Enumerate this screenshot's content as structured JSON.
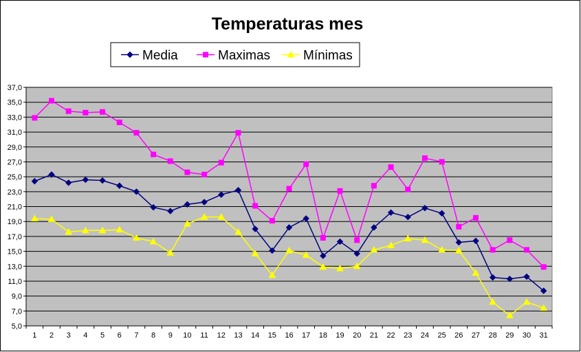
{
  "chart_data": {
    "type": "line",
    "title": "Temperaturas mes",
    "xlabel": "",
    "ylabel": "",
    "ylim": [
      5.0,
      37.0
    ],
    "y_ticks": [
      "5,0",
      "7,0",
      "9,0",
      "11,0",
      "13,0",
      "15,0",
      "17,0",
      "19,0",
      "21,0",
      "23,0",
      "25,0",
      "27,0",
      "29,0",
      "31,0",
      "33,0",
      "35,0",
      "37,0"
    ],
    "categories": [
      "1",
      "2",
      "3",
      "4",
      "5",
      "6",
      "7",
      "8",
      "9",
      "10",
      "11",
      "12",
      "13",
      "14",
      "15",
      "16",
      "17",
      "18",
      "19",
      "20",
      "21",
      "22",
      "23",
      "24",
      "25",
      "26",
      "27",
      "28",
      "29",
      "30",
      "31"
    ],
    "grid": true,
    "legend_position": "top",
    "plot_background": "#c0c0c0",
    "series": [
      {
        "name": "Media",
        "color": "#000080",
        "marker": "diamond",
        "values": [
          24.4,
          25.3,
          24.2,
          24.6,
          24.5,
          23.8,
          23.0,
          20.9,
          20.4,
          21.3,
          21.6,
          22.6,
          23.2,
          18.0,
          15.1,
          18.2,
          19.4,
          14.4,
          16.3,
          14.7,
          18.2,
          20.2,
          19.6,
          20.8,
          20.1,
          16.2,
          16.4,
          11.5,
          11.3,
          11.6,
          9.7
        ]
      },
      {
        "name": "Maximas",
        "color": "#ff00ff",
        "marker": "square",
        "values": [
          32.9,
          35.2,
          33.8,
          33.6,
          33.7,
          32.3,
          30.9,
          28.0,
          27.1,
          25.6,
          25.3,
          26.9,
          30.9,
          21.1,
          19.1,
          23.4,
          26.7,
          16.8,
          23.1,
          16.5,
          23.8,
          26.3,
          23.3,
          27.5,
          27.0,
          18.3,
          19.5,
          15.2,
          16.5,
          15.2,
          12.9
        ]
      },
      {
        "name": "Mínimas",
        "color": "#ffff00",
        "marker": "triangle",
        "values": [
          19.4,
          19.3,
          17.6,
          17.8,
          17.8,
          17.9,
          16.8,
          16.3,
          14.8,
          18.7,
          19.6,
          19.6,
          17.6,
          14.7,
          11.8,
          15.1,
          14.5,
          12.9,
          12.7,
          13.0,
          15.2,
          15.8,
          16.7,
          16.5,
          15.2,
          15.1,
          12.1,
          8.2,
          6.4,
          8.2,
          7.4
        ]
      }
    ]
  }
}
